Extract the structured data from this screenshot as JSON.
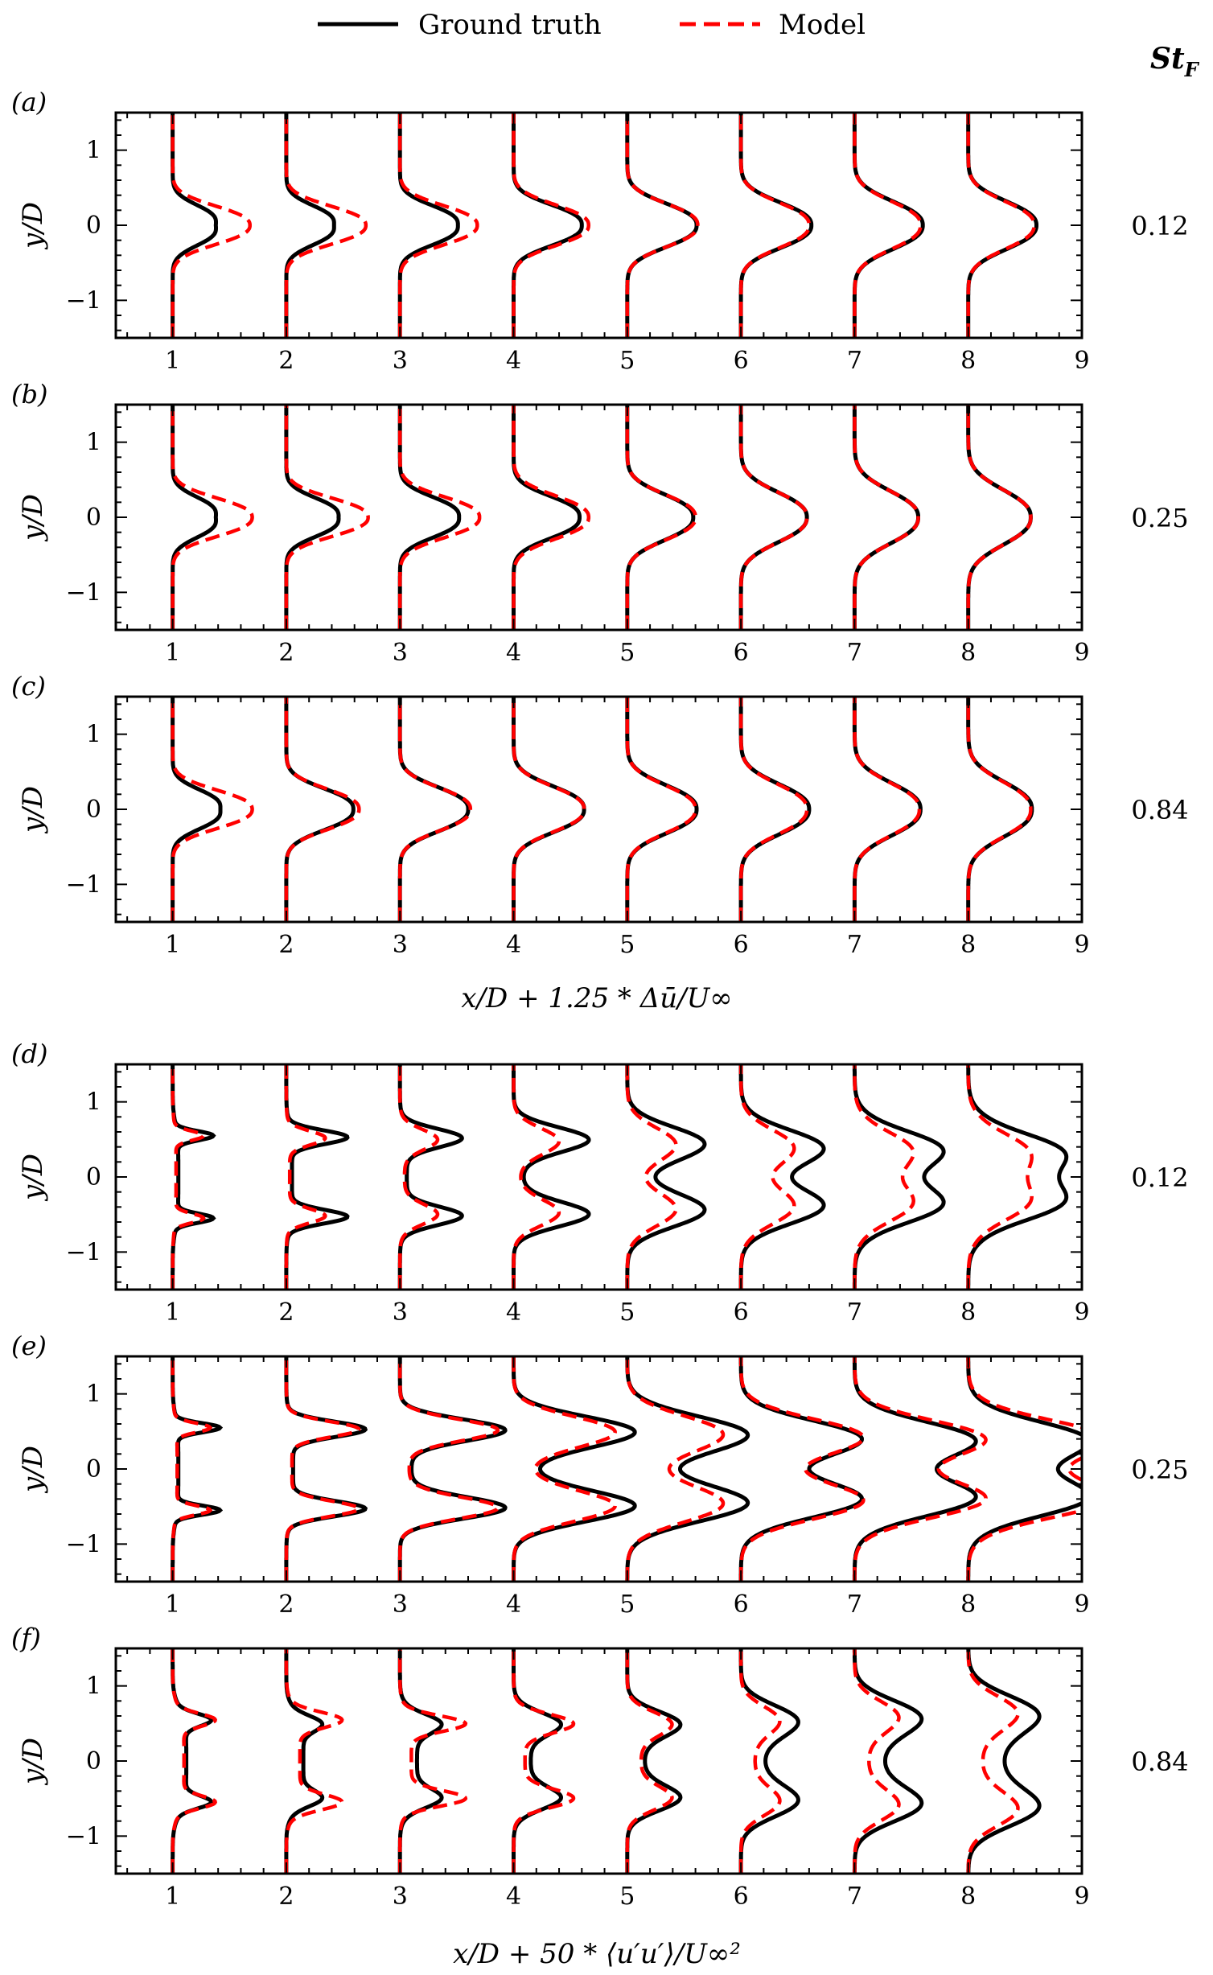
{
  "legend": {
    "ground_truth_label": "Ground truth",
    "model_label": "Model",
    "ground_truth_color": "#000000",
    "model_color": "#ff0000"
  },
  "st_header": "St_F",
  "group_xlabels": [
    "x/D + 1.25 * Δū/U∞",
    "x/D + 50 * ⟨u′u′⟩/U∞²"
  ],
  "chart_data": [
    {
      "type": "line",
      "panel": "(a)",
      "quantity": "mean",
      "st": "0.12",
      "ylabel": "y/D",
      "xlim": [
        0.5,
        9
      ],
      "ylim": [
        -1.5,
        1.5
      ],
      "xticks": [
        1,
        2,
        3,
        4,
        5,
        6,
        7,
        8,
        9
      ],
      "yticks": [
        -1,
        0,
        1
      ],
      "stations": [
        1,
        2,
        3,
        4,
        5,
        6,
        7,
        8
      ],
      "series": [
        {
          "name": "Ground truth",
          "peak": [
            0.6,
            0.6,
            0.63,
            0.66,
            0.63,
            0.62,
            0.6,
            0.6
          ],
          "dip": [
            0.22,
            0.18,
            0.12,
            0.06,
            0.02,
            0,
            0,
            0
          ],
          "sigma": [
            0.3,
            0.3,
            0.31,
            0.33,
            0.36,
            0.38,
            0.4,
            0.4
          ]
        },
        {
          "name": "Model",
          "peak": [
            0.68,
            0.7,
            0.68,
            0.66,
            0.62,
            0.6,
            0.58,
            0.58
          ],
          "dip": [
            0,
            0,
            0,
            0,
            0,
            0,
            0,
            0
          ],
          "sigma": [
            0.32,
            0.32,
            0.33,
            0.34,
            0.36,
            0.38,
            0.4,
            0.4
          ]
        }
      ]
    },
    {
      "type": "line",
      "panel": "(b)",
      "quantity": "mean",
      "st": "0.25",
      "ylabel": "y/D",
      "xlim": [
        0.5,
        9
      ],
      "ylim": [
        -1.5,
        1.5
      ],
      "xticks": [
        1,
        2,
        3,
        4,
        5,
        6,
        7,
        8,
        9
      ],
      "yticks": [
        -1,
        0,
        1
      ],
      "stations": [
        1,
        2,
        3,
        4,
        5,
        6,
        7,
        8
      ],
      "series": [
        {
          "name": "Ground truth",
          "peak": [
            0.6,
            0.62,
            0.62,
            0.64,
            0.6,
            0.58,
            0.56,
            0.55
          ],
          "dip": [
            0.22,
            0.16,
            0.1,
            0.06,
            0.02,
            0,
            0,
            0
          ],
          "sigma": [
            0.3,
            0.3,
            0.32,
            0.34,
            0.38,
            0.42,
            0.44,
            0.46
          ]
        },
        {
          "name": "Model",
          "peak": [
            0.7,
            0.72,
            0.7,
            0.66,
            0.6,
            0.58,
            0.56,
            0.55
          ],
          "dip": [
            0,
            0,
            0,
            0,
            0,
            0,
            0,
            0
          ],
          "sigma": [
            0.32,
            0.32,
            0.34,
            0.36,
            0.38,
            0.42,
            0.44,
            0.46
          ]
        }
      ]
    },
    {
      "type": "line",
      "panel": "(c)",
      "quantity": "mean",
      "st": "0.84",
      "ylabel": "y/D",
      "xlim": [
        0.5,
        9
      ],
      "ylim": [
        -1.5,
        1.5
      ],
      "xticks": [
        1,
        2,
        3,
        4,
        5,
        6,
        7,
        8,
        9
      ],
      "yticks": [
        -1,
        0,
        1
      ],
      "stations": [
        1,
        2,
        3,
        4,
        5,
        6,
        7,
        8
      ],
      "series": [
        {
          "name": "Ground truth",
          "peak": [
            0.6,
            0.64,
            0.64,
            0.64,
            0.62,
            0.6,
            0.58,
            0.56
          ],
          "dip": [
            0.18,
            0.05,
            0.04,
            0.02,
            0.01,
            0,
            0,
            0
          ],
          "sigma": [
            0.3,
            0.34,
            0.36,
            0.38,
            0.4,
            0.42,
            0.44,
            0.46
          ]
        },
        {
          "name": "Model",
          "peak": [
            0.7,
            0.64,
            0.62,
            0.62,
            0.6,
            0.58,
            0.57,
            0.55
          ],
          "dip": [
            0,
            0,
            0,
            0,
            0,
            0,
            0,
            0
          ],
          "sigma": [
            0.32,
            0.34,
            0.36,
            0.38,
            0.4,
            0.42,
            0.44,
            0.46
          ]
        }
      ]
    },
    {
      "type": "line",
      "panel": "(d)",
      "quantity": "reynolds_stress",
      "st": "0.12",
      "ylabel": "y/D",
      "xlim": [
        0.5,
        9
      ],
      "ylim": [
        -1.5,
        1.5
      ],
      "xticks": [
        1,
        2,
        3,
        4,
        5,
        6,
        7,
        8,
        9
      ],
      "yticks": [
        -1,
        0,
        1
      ],
      "stations": [
        1,
        2,
        3,
        4,
        5,
        6,
        7,
        8
      ],
      "series": [
        {
          "name": "Ground truth",
          "amp": [
            0.32,
            0.5,
            0.5,
            0.6,
            0.6,
            0.6,
            0.6,
            0.6
          ],
          "center": [
            0.55,
            0.53,
            0.52,
            0.5,
            0.45,
            0.4,
            0.38,
            0.35
          ],
          "width": [
            0.06,
            0.09,
            0.12,
            0.16,
            0.22,
            0.24,
            0.26,
            0.28
          ],
          "base": [
            0.05,
            0.05,
            0.06,
            0.08,
            0.1,
            0.15,
            0.2,
            0.25
          ]
        },
        {
          "name": "Model",
          "amp": [
            0.25,
            0.32,
            0.3,
            0.36,
            0.38,
            0.4,
            0.42,
            0.42
          ],
          "center": [
            0.55,
            0.52,
            0.5,
            0.48,
            0.44,
            0.4,
            0.36,
            0.34
          ],
          "width": [
            0.06,
            0.09,
            0.13,
            0.17,
            0.22,
            0.24,
            0.26,
            0.28
          ],
          "base": [
            0.03,
            0.03,
            0.04,
            0.05,
            0.06,
            0.08,
            0.1,
            0.12
          ]
        }
      ]
    },
    {
      "type": "line",
      "panel": "(e)",
      "quantity": "reynolds_stress",
      "st": "0.25",
      "ylabel": "y/D",
      "xlim": [
        0.5,
        9
      ],
      "ylim": [
        -1.5,
        1.5
      ],
      "xticks": [
        1,
        2,
        3,
        4,
        5,
        6,
        7,
        8,
        9
      ],
      "yticks": [
        -1,
        0,
        1
      ],
      "stations": [
        1,
        2,
        3,
        4,
        5,
        6,
        7,
        8
      ],
      "series": [
        {
          "name": "Ground truth",
          "amp": [
            0.38,
            0.65,
            0.85,
            0.95,
            0.9,
            0.88,
            0.85,
            0.8
          ],
          "center": [
            0.55,
            0.53,
            0.52,
            0.5,
            0.47,
            0.42,
            0.4,
            0.4
          ],
          "width": [
            0.06,
            0.1,
            0.14,
            0.2,
            0.24,
            0.24,
            0.25,
            0.26
          ],
          "base": [
            0.05,
            0.06,
            0.1,
            0.15,
            0.2,
            0.22,
            0.25,
            0.3
          ]
        },
        {
          "name": "Model",
          "amp": [
            0.3,
            0.6,
            0.8,
            0.8,
            0.7,
            0.88,
            0.9,
            0.9
          ],
          "center": [
            0.55,
            0.53,
            0.52,
            0.5,
            0.48,
            0.44,
            0.42,
            0.42
          ],
          "width": [
            0.06,
            0.1,
            0.14,
            0.2,
            0.24,
            0.24,
            0.25,
            0.26
          ],
          "base": [
            0.04,
            0.05,
            0.08,
            0.12,
            0.18,
            0.24,
            0.3,
            0.4
          ]
        }
      ]
    },
    {
      "type": "line",
      "panel": "(f)",
      "quantity": "reynolds_stress",
      "st": "0.84",
      "ylabel": "y/D",
      "xlim": [
        0.5,
        9
      ],
      "ylim": [
        -1.5,
        1.5
      ],
      "xticks": [
        1,
        2,
        3,
        4,
        5,
        6,
        7,
        8,
        9
      ],
      "yticks": [
        -1,
        0,
        1
      ],
      "stations": [
        1,
        2,
        3,
        4,
        5,
        6,
        7,
        8
      ],
      "series": [
        {
          "name": "Ground truth",
          "amp": [
            0.25,
            0.2,
            0.25,
            0.3,
            0.35,
            0.35,
            0.4,
            0.4
          ],
          "center": [
            0.55,
            0.5,
            0.5,
            0.5,
            0.5,
            0.55,
            0.6,
            0.65
          ],
          "width": [
            0.08,
            0.1,
            0.12,
            0.14,
            0.16,
            0.2,
            0.22,
            0.24
          ],
          "base": [
            0.12,
            0.15,
            0.15,
            0.15,
            0.15,
            0.2,
            0.25,
            0.3
          ]
        },
        {
          "name": "Model",
          "amp": [
            0.3,
            0.4,
            0.5,
            0.45,
            0.3,
            0.25,
            0.3,
            0.35
          ],
          "center": [
            0.55,
            0.55,
            0.5,
            0.5,
            0.5,
            0.55,
            0.6,
            0.65
          ],
          "width": [
            0.08,
            0.1,
            0.1,
            0.12,
            0.15,
            0.18,
            0.2,
            0.22
          ],
          "base": [
            0.1,
            0.12,
            0.1,
            0.1,
            0.12,
            0.12,
            0.12,
            0.12
          ]
        }
      ]
    }
  ]
}
